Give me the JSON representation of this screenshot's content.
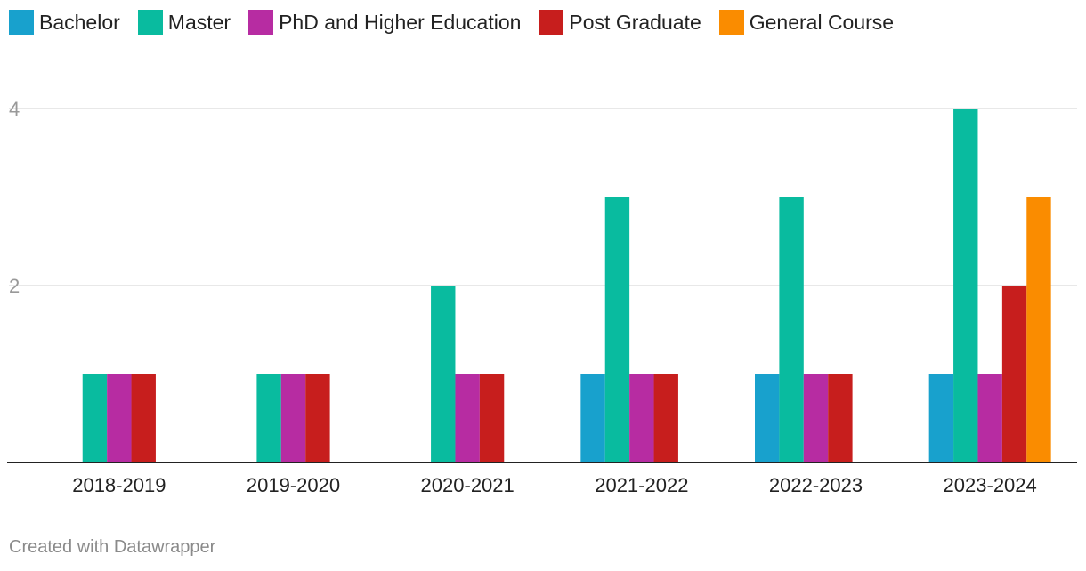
{
  "chart_data": {
    "type": "bar",
    "categories": [
      "2018-2019",
      "2019-2020",
      "2020-2021",
      "2021-2022",
      "2022-2023",
      "2023-2024"
    ],
    "series": [
      {
        "name": "Bachelor",
        "color": "#18a1cd",
        "values": [
          0,
          0,
          0,
          1,
          1,
          1
        ]
      },
      {
        "name": "Master",
        "color": "#09bb9f",
        "values": [
          1,
          1,
          2,
          3,
          3,
          4
        ]
      },
      {
        "name": "PhD and Higher Education",
        "color": "#b72ca2",
        "values": [
          1,
          1,
          1,
          1,
          1,
          1
        ]
      },
      {
        "name": "Post Graduate",
        "color": "#c71e1d",
        "values": [
          1,
          1,
          1,
          1,
          1,
          2
        ]
      },
      {
        "name": "General Course",
        "color": "#fa8c00",
        "values": [
          0,
          0,
          0,
          0,
          0,
          3
        ]
      }
    ],
    "yticks": [
      2,
      4
    ],
    "ylim": [
      0,
      4
    ],
    "grid": true,
    "legend": "top-left"
  },
  "footer": {
    "credit": "Created with Datawrapper"
  }
}
